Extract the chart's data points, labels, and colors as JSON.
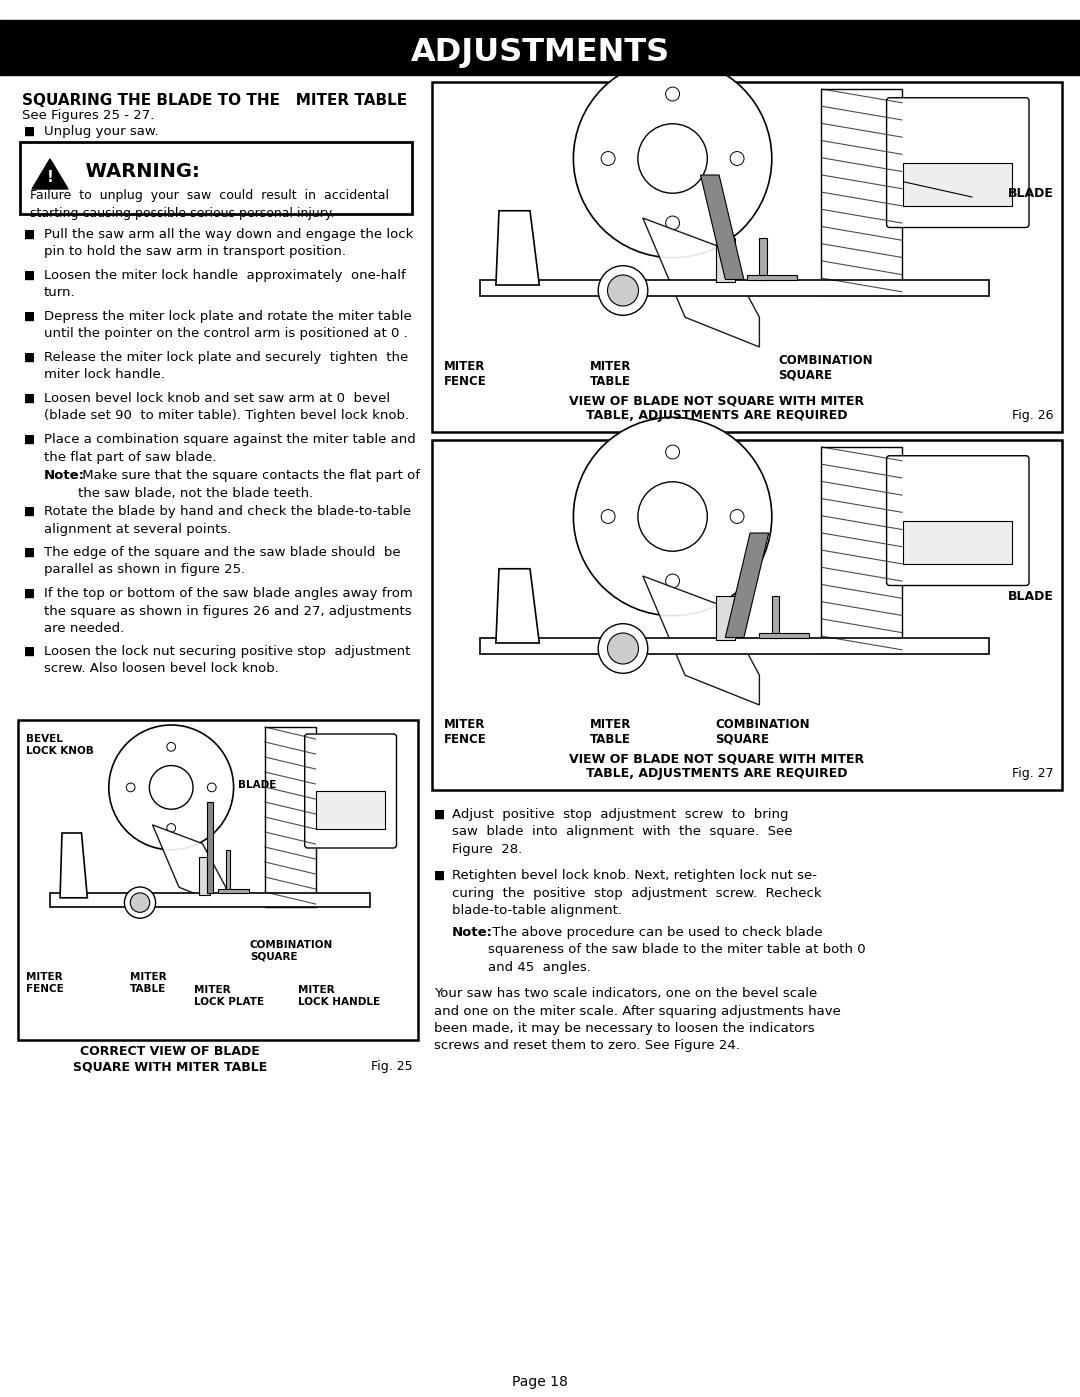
{
  "page_title": "ADJUSTMENTS",
  "section_title": "SQUARING THE BLADE TO THE   MITER TABLE",
  "see_figures": "See Figures 25 - 27.",
  "bullet0": "Unplug your saw.",
  "warning_title": "  WARNING:",
  "warning_text": "Failure  to  unplug  your  saw  could  result  in  accidental\nstarting causing possible serious personal injury.",
  "bullets": [
    "Pull the saw arm all the way down and engage the lock\npin to hold the saw arm in transport position.",
    "Loosen the miter lock handle  approximately  one-half\nturn.",
    "Depress the miter lock plate and rotate the miter table\nuntil the pointer on the control arm is positioned at 0 .",
    "Release the miter lock plate and securely  tighten  the\nmiter lock handle.",
    "Loosen bevel lock knob and set saw arm at 0  bevel\n(blade set 90  to miter table). Tighten bevel lock knob.",
    "Place a combination square against the miter table and\nthe flat part of saw blade.",
    "Rotate the blade by hand and check the blade-to-table\nalignment at several points.",
    "The edge of the square and the saw blade should  be\nparallel as shown in figure 25.",
    "If the top or bottom of the saw blade angles away from\nthe square as shown in figures 26 and 27, adjustments\nare needed.",
    "Loosen the lock nut securing positive stop  adjustment\nscrew. Also loosen bevel lock knob."
  ],
  "note_bold": "Note:",
  "note_text": " Make sure that the square contacts the flat part of\nthe saw blade, not the blade teeth.",
  "fig26_caption_line1": "VIEW OF BLADE NOT SQUARE WITH MITER",
  "fig26_caption_line2": "TABLE, ADJUSTMENTS ARE REQUIRED",
  "fig26_label": "Fig. 26",
  "fig27_caption_line1": "VIEW OF BLADE NOT SQUARE WITH MITER",
  "fig27_caption_line2": "TABLE, ADJUSTMENTS ARE REQUIRED",
  "fig27_label": "Fig. 27",
  "fig25_caption_line1": "CORRECT VIEW OF BLADE",
  "fig25_caption_line2": "SQUARE WITH MITER TABLE",
  "fig25_label": "Fig. 25",
  "right_bullet1": "Adjust  positive  stop  adjustment  screw  to  bring\nsaw  blade  into  alignment  with  the  square.  See\nFigure  28.",
  "right_bullet2": "Retighten bevel lock knob. Next, retighten lock nut se-\ncuring  the  positive  stop  adjustment  screw.  Recheck\nblade-to-table alignment.",
  "right_note_bold": "Note:",
  "right_note_text": " The above procedure can be used to check blade\nsquareness of the saw blade to the miter table at both 0\nand 45  angles.",
  "bottom_para": "Your saw has two scale indicators, one on the bevel scale\nand one on the miter scale. After squaring adjustments have\nbeen made, it may be necessary to loosen the indicators\nscrews and reset them to zero. See Figure 24.",
  "page_number": "Page 18",
  "bg": "#ffffff",
  "black": "#000000",
  "gray_fig": "#f8f8f8",
  "gray_draw": "#c0c0c0",
  "dark_draw": "#404040"
}
